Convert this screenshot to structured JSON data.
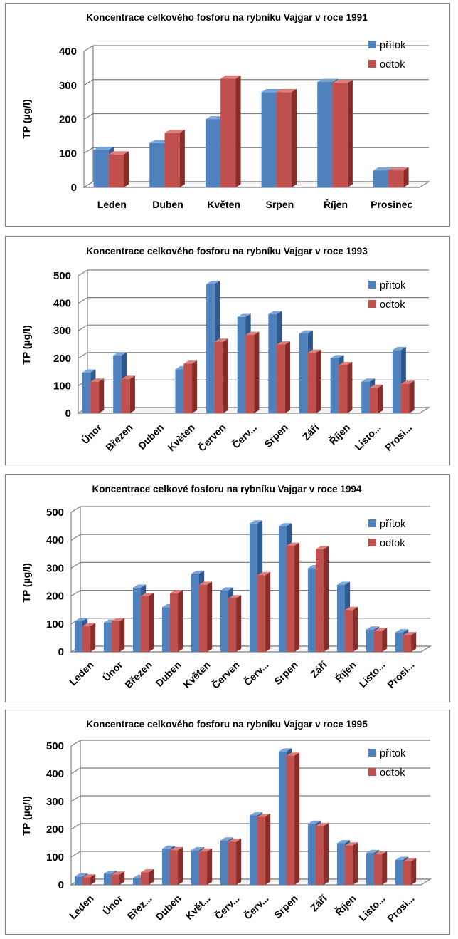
{
  "colors": {
    "pritok": "#4f81bd",
    "pritok_top": "#7aa3d8",
    "pritok_side": "#2e5a93",
    "odtok": "#c0504d",
    "odtok_top": "#dc7f7c",
    "odtok_side": "#8b2c29",
    "grid": "#7f7f7f"
  },
  "chart_data": [
    {
      "type": "bar",
      "title": "Koncentrace celkového fosforu na rybníku Vajgar v roce 1991",
      "ylabel": "TP (µg/l)",
      "xlabel": "",
      "ylim": [
        0,
        400
      ],
      "yticks": [
        0,
        100,
        200,
        300,
        400
      ],
      "categories": [
        "Leden",
        "Duben",
        "Květen",
        "Srpen",
        "Říjen",
        "Prosinec"
      ],
      "rotated_labels": false,
      "legend_position": "top-right",
      "series": [
        {
          "name": "přítok",
          "values": [
            110,
            130,
            200,
            280,
            310,
            50
          ]
        },
        {
          "name": "odtok",
          "values": [
            97,
            160,
            320,
            280,
            307,
            50
          ]
        }
      ]
    },
    {
      "type": "bar",
      "title": "Koncentrace celkového fosforu na rybníku Vajgar v roce 1993",
      "ylabel": "TP (µg/l)",
      "xlabel": "",
      "ylim": [
        0,
        500
      ],
      "yticks": [
        0,
        100,
        200,
        300,
        400,
        500
      ],
      "categories": [
        "Únor",
        "Březen",
        "Duben",
        "Květen",
        "Červen",
        "Červ...",
        "Srpen",
        "Září",
        "Říjen",
        "Listo...",
        "Prosi..."
      ],
      "rotated_labels": true,
      "legend_position": "top-right",
      "series": [
        {
          "name": "přítok",
          "values": [
            148,
            210,
            null,
            160,
            470,
            350,
            360,
            290,
            200,
            115,
            230
          ]
        },
        {
          "name": "odtok",
          "values": [
            115,
            125,
            null,
            180,
            260,
            285,
            250,
            220,
            175,
            93,
            107
          ]
        }
      ]
    },
    {
      "type": "bar",
      "title": "Koncentrace celkové fosforu na rybníku Vajgar v roce 1994",
      "ylabel": "TP (µg/l)",
      "xlabel": "",
      "ylim": [
        0,
        500
      ],
      "yticks": [
        0,
        100,
        200,
        300,
        400,
        500
      ],
      "categories": [
        "Leden",
        "Únor",
        "Březen",
        "Duben",
        "Květen",
        "Červen",
        "Červ...",
        "Srpen",
        "Září",
        "Říjen",
        "Listo...",
        "Prosi..."
      ],
      "rotated_labels": true,
      "legend_position": "top-right",
      "series": [
        {
          "name": "přítok",
          "values": [
            110,
            105,
            230,
            160,
            280,
            220,
            460,
            450,
            300,
            240,
            80,
            70
          ]
        },
        {
          "name": "odtok",
          "values": [
            92,
            110,
            200,
            210,
            240,
            192,
            275,
            380,
            368,
            150,
            75,
            60
          ]
        }
      ]
    },
    {
      "type": "bar",
      "title": "Koncentrace celkového fosforu na rybníku Vajgar v roce 1995",
      "ylabel": "TP (µg/l)",
      "xlabel": "",
      "ylim": [
        0,
        500
      ],
      "yticks": [
        0,
        100,
        200,
        300,
        400,
        500
      ],
      "categories": [
        "Leden",
        "Únor",
        "Břez...",
        "Duben",
        "Květ...",
        "Červ...",
        "Červ...",
        "Srpen",
        "Září",
        "Říjen",
        "Listo...",
        "Prosi..."
      ],
      "rotated_labels": true,
      "legend_position": "top-right",
      "series": [
        {
          "name": "přítok",
          "values": [
            30,
            40,
            25,
            130,
            125,
            160,
            250,
            480,
            220,
            150,
            115,
            90
          ]
        },
        {
          "name": "odtok",
          "values": [
            27,
            37,
            45,
            125,
            120,
            155,
            245,
            465,
            212,
            142,
            110,
            85
          ]
        }
      ]
    }
  ]
}
